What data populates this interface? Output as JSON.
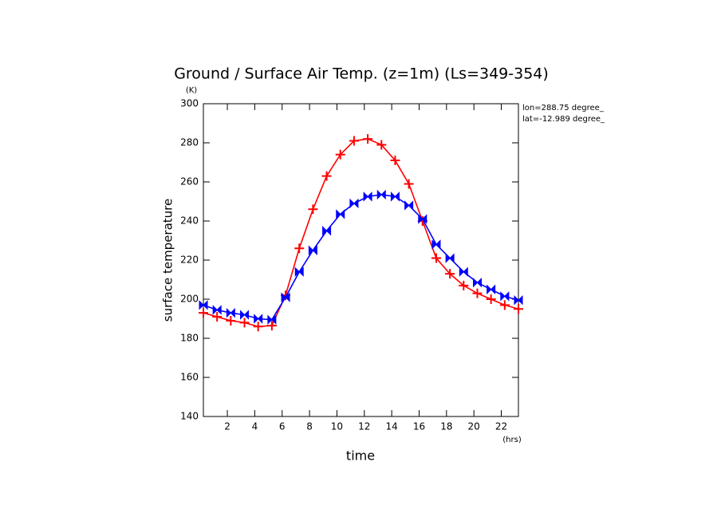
{
  "chart_data": {
    "type": "line",
    "title": "Ground / Surface Air Temp. (z=1m) (Ls=349-354)",
    "y_unit": "(K)",
    "x_unit": "(hrs)",
    "xlabel": "time",
    "ylabel": "surface temperature",
    "annotations": [
      "lon=288.75 degree_",
      "lat=-12.989 degree_"
    ],
    "x": [
      0.25,
      1.25,
      2.25,
      3.25,
      4.25,
      5.25,
      6.25,
      7.25,
      8.25,
      9.25,
      10.25,
      11.25,
      12.25,
      13.25,
      14.25,
      15.25,
      16.25,
      17.25,
      18.25,
      19.25,
      20.25,
      21.25,
      22.25,
      23.25
    ],
    "series": [
      {
        "color": "#ff0000",
        "marker": "plus",
        "values": [
          193,
          191,
          189,
          188,
          186,
          186.5,
          202,
          226,
          246,
          263,
          274,
          281,
          282,
          279,
          271,
          259,
          240,
          221,
          213,
          207,
          203,
          200,
          197,
          195
        ]
      },
      {
        "color": "#0000ff",
        "marker": "bowtie",
        "values": [
          197,
          194.5,
          193,
          192,
          190,
          189.5,
          201,
          214,
          225,
          235,
          243.5,
          249,
          252.5,
          253.5,
          252.5,
          248,
          241,
          228,
          221,
          214,
          208.5,
          205,
          201.5,
          199.5
        ]
      }
    ],
    "xlim": [
      0.25,
      23.25
    ],
    "xticks": [
      2,
      4,
      6,
      8,
      10,
      12,
      14,
      16,
      18,
      20,
      22
    ],
    "ylim": [
      140,
      300
    ],
    "yticks": [
      140,
      160,
      180,
      200,
      220,
      240,
      260,
      280,
      300
    ]
  }
}
